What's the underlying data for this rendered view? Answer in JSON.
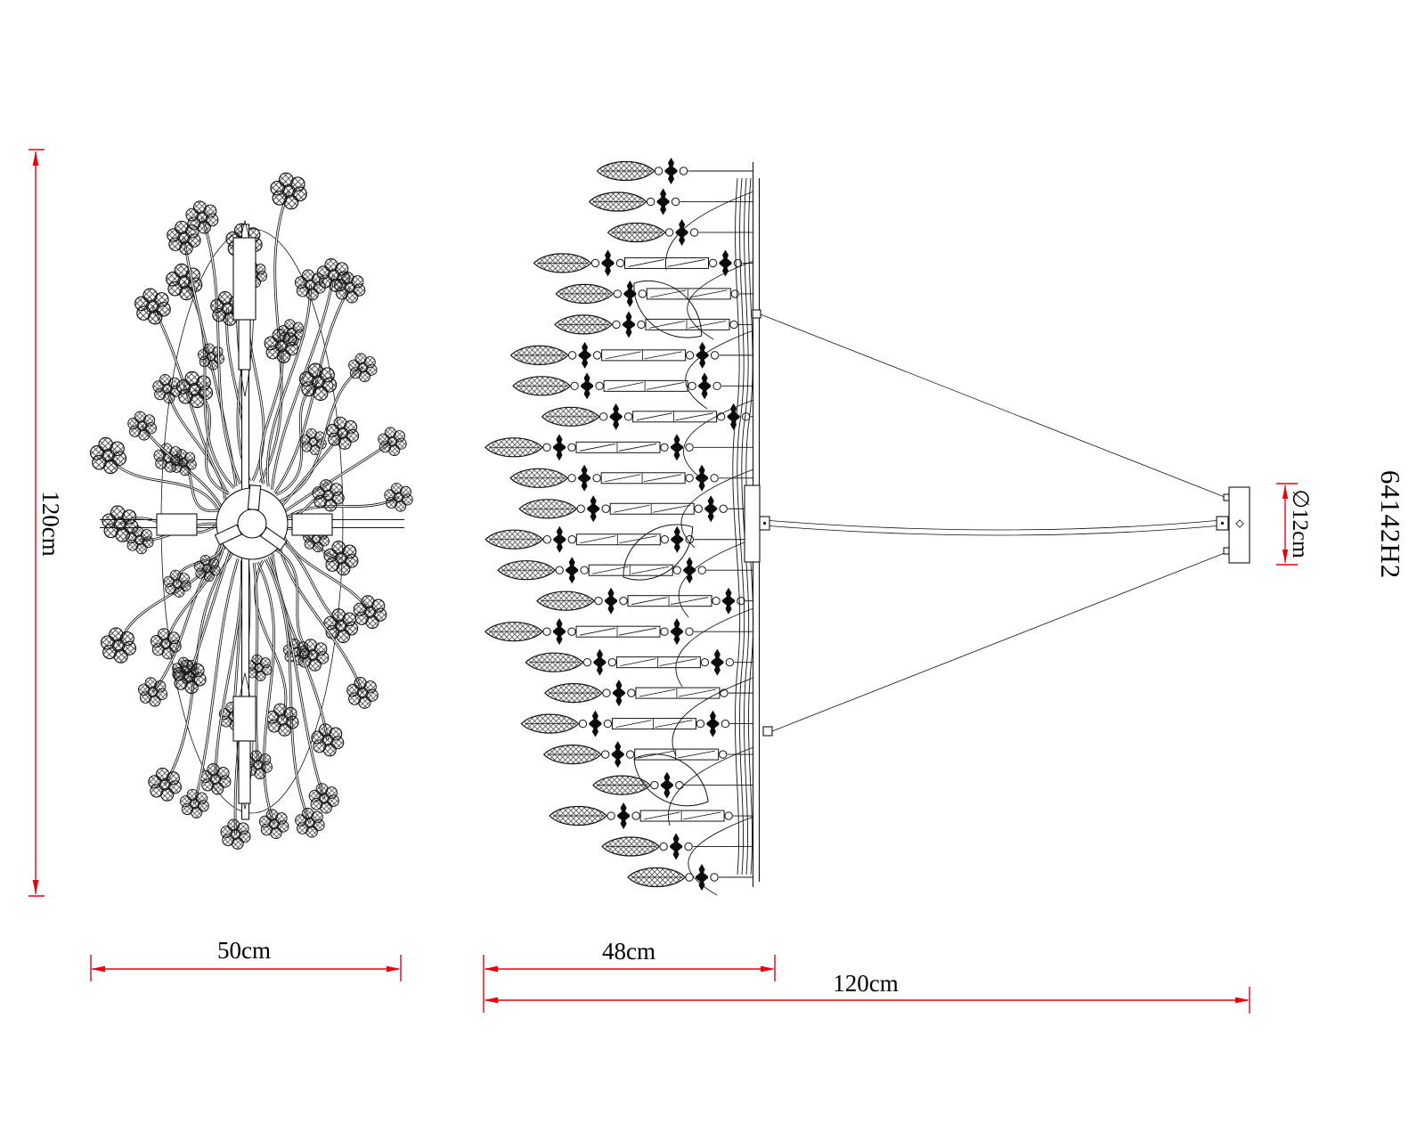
{
  "page": {
    "background": "#ffffff"
  },
  "drawing": {
    "model_code": "64142H2",
    "dimensions": {
      "plan_height": "120cm",
      "plan_width": "50cm",
      "body_width": "48cm",
      "overall_width": "120cm",
      "canopy_diameter": "∅12cm"
    },
    "colors": {
      "dimension_red": "#e8000f",
      "line_black": "#111111"
    }
  }
}
